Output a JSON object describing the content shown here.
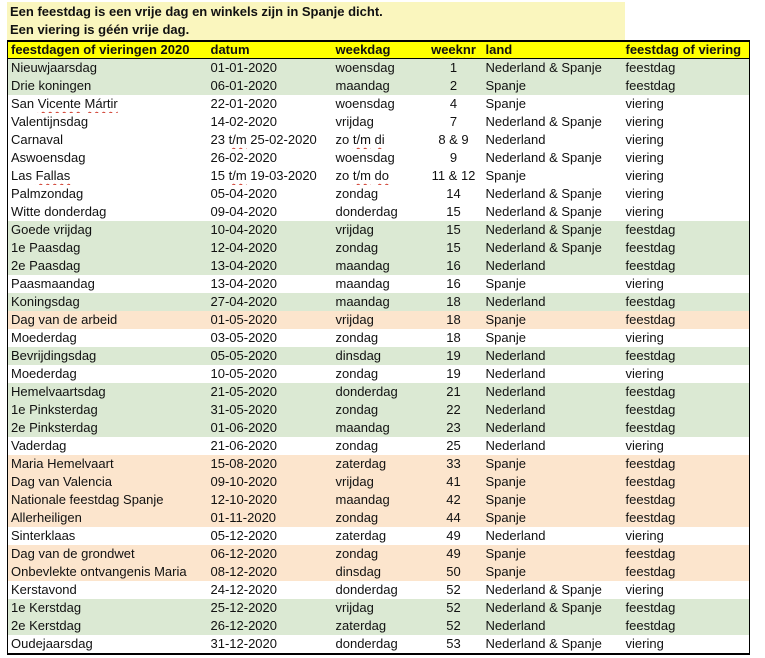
{
  "banner": {
    "line1": "Een feestdag is een vrije dag en winkels zijn in Spanje dicht.",
    "line2": "Een viering is géén vrije dag.",
    "bg": "#faf6be"
  },
  "table": {
    "colors": {
      "header_bg": "#ffff00",
      "green": "#dbe9d3",
      "peach": "#fce5cd",
      "white": "#ffffff",
      "squiggle": "#cf3a2b"
    },
    "header": {
      "columns": [
        {
          "key": "name",
          "label": "feestdagen of vieringen 2020",
          "squiggle": false
        },
        {
          "key": "datum",
          "label": "datum",
          "squiggle": false
        },
        {
          "key": "weekdag",
          "label": "weekdag",
          "squiggle": false
        },
        {
          "key": "weeknr",
          "label": "weeknr",
          "squiggle": true
        },
        {
          "key": "land",
          "label": "land",
          "squiggle": false
        },
        {
          "key": "type",
          "label": "feestdag of viering",
          "squiggle": false
        }
      ]
    },
    "rows": [
      {
        "name": "Nieuwjaarsdag",
        "datum": "01-01-2020",
        "weekdag": "woensdag",
        "weeknr": "1",
        "land": "Nederland & Spanje",
        "type": "feestdag",
        "color": "green"
      },
      {
        "name": "Drie koningen",
        "datum": "06-01-2020",
        "weekdag": "maandag",
        "weeknr": "2",
        "land": "Spanje",
        "type": "feestdag",
        "color": "green"
      },
      {
        "name": "San Vicente Mártir",
        "datum": "22-01-2020",
        "weekdag": "woensdag",
        "weeknr": "4",
        "land": "Spanje",
        "type": "viering",
        "color": "white",
        "sq": {
          "name": [
            "Vicente",
            "Mártir"
          ]
        }
      },
      {
        "name": "Valentijnsdag",
        "datum": "14-02-2020",
        "weekdag": "vrijdag",
        "weeknr": "7",
        "land": "Nederland & Spanje",
        "type": "viering",
        "color": "white"
      },
      {
        "name": "Carnaval",
        "datum": "23 t/m 25-02-2020",
        "weekdag": "zo t/m di",
        "weeknr": "8 & 9",
        "land": "Nederland",
        "type": "viering",
        "color": "white",
        "sq": {
          "datum": [
            "t/m"
          ],
          "weekdag": [
            "t/m",
            "di"
          ]
        }
      },
      {
        "name": "Aswoensdag",
        "datum": "26-02-2020",
        "weekdag": "woensdag",
        "weeknr": "9",
        "land": "Nederland & Spanje",
        "type": "viering",
        "color": "white"
      },
      {
        "name": "Las Fallas",
        "datum": "15 t/m 19-03-2020",
        "weekdag": "zo t/m do",
        "weeknr": "11 & 12",
        "land": "Spanje",
        "type": "viering",
        "color": "white",
        "sq": {
          "name": [
            "Fallas"
          ],
          "datum": [
            "t/m"
          ],
          "weekdag": [
            "t/m",
            "do"
          ]
        }
      },
      {
        "name": "Palmzondag",
        "datum": "05-04-2020",
        "weekdag": "zondag",
        "weeknr": "14",
        "land": "Nederland & Spanje",
        "type": "viering",
        "color": "white"
      },
      {
        "name": "Witte donderdag",
        "datum": "09-04-2020",
        "weekdag": "donderdag",
        "weeknr": "15",
        "land": "Nederland & Spanje",
        "type": "viering",
        "color": "white"
      },
      {
        "name": "Goede vrijdag",
        "datum": "10-04-2020",
        "weekdag": "vrijdag",
        "weeknr": "15",
        "land": "Nederland & Spanje",
        "type": "feestdag",
        "color": "green"
      },
      {
        "name": "1e Paasdag",
        "datum": "12-04-2020",
        "weekdag": "zondag",
        "weeknr": "15",
        "land": "Nederland & Spanje",
        "type": "feestdag",
        "color": "green"
      },
      {
        "name": "2e Paasdag",
        "datum": "13-04-2020",
        "weekdag": "maandag",
        "weeknr": "16",
        "land": "Nederland",
        "type": "feestdag",
        "color": "green"
      },
      {
        "name": "Paasmaandag",
        "datum": "13-04-2020",
        "weekdag": "maandag",
        "weeknr": "16",
        "land": "Spanje",
        "type": "viering",
        "color": "white"
      },
      {
        "name": "Koningsdag",
        "datum": "27-04-2020",
        "weekdag": "maandag",
        "weeknr": "18",
        "land": "Nederland",
        "type": "feestdag",
        "color": "green"
      },
      {
        "name": "Dag van de arbeid",
        "datum": "01-05-2020",
        "weekdag": "vrijdag",
        "weeknr": "18",
        "land": "Spanje",
        "type": "feestdag",
        "color": "peach"
      },
      {
        "name": "Moederdag",
        "datum": "03-05-2020",
        "weekdag": "zondag",
        "weeknr": "18",
        "land": "Spanje",
        "type": "viering",
        "color": "white"
      },
      {
        "name": "Bevrijdingsdag",
        "datum": "05-05-2020",
        "weekdag": "dinsdag",
        "weeknr": "19",
        "land": "Nederland",
        "type": "feestdag",
        "color": "green"
      },
      {
        "name": "Moederdag",
        "datum": "10-05-2020",
        "weekdag": "zondag",
        "weeknr": "19",
        "land": "Nederland",
        "type": "viering",
        "color": "white"
      },
      {
        "name": "Hemelvaartsdag",
        "datum": "21-05-2020",
        "weekdag": "donderdag",
        "weeknr": "21",
        "land": "Nederland",
        "type": "feestdag",
        "color": "green"
      },
      {
        "name": "1e Pinksterdag",
        "datum": "31-05-2020",
        "weekdag": "zondag",
        "weeknr": "22",
        "land": "Nederland",
        "type": "feestdag",
        "color": "green"
      },
      {
        "name": "2e Pinksterdag",
        "datum": "01-06-2020",
        "weekdag": "maandag",
        "weeknr": "23",
        "land": "Nederland",
        "type": "feestdag",
        "color": "green"
      },
      {
        "name": "Vaderdag",
        "datum": "21-06-2020",
        "weekdag": "zondag",
        "weeknr": "25",
        "land": "Nederland",
        "type": "viering",
        "color": "white"
      },
      {
        "name": "Maria Hemelvaart",
        "datum": "15-08-2020",
        "weekdag": "zaterdag",
        "weeknr": "33",
        "land": "Spanje",
        "type": "feestdag",
        "color": "peach"
      },
      {
        "name": "Dag van Valencia",
        "datum": "09-10-2020",
        "weekdag": "vrijdag",
        "weeknr": "41",
        "land": "Spanje",
        "type": "feestdag",
        "color": "peach"
      },
      {
        "name": "Nationale feestdag Spanje",
        "datum": "12-10-2020",
        "weekdag": "maandag",
        "weeknr": "42",
        "land": "Spanje",
        "type": "feestdag",
        "color": "peach"
      },
      {
        "name": "Allerheiligen",
        "datum": "01-11-2020",
        "weekdag": "zondag",
        "weeknr": "44",
        "land": "Spanje",
        "type": "feestdag",
        "color": "peach"
      },
      {
        "name": "Sinterklaas",
        "datum": "05-12-2020",
        "weekdag": "zaterdag",
        "weeknr": "49",
        "land": "Nederland",
        "type": "viering",
        "color": "white"
      },
      {
        "name": "Dag van de grondwet",
        "datum": "06-12-2020",
        "weekdag": "zondag",
        "weeknr": "49",
        "land": "Spanje",
        "type": "feestdag",
        "color": "peach"
      },
      {
        "name": "Onbevlekte ontvangenis Maria",
        "datum": "08-12-2020",
        "weekdag": "dinsdag",
        "weeknr": "50",
        "land": "Spanje",
        "type": "feestdag",
        "color": "peach"
      },
      {
        "name": "Kerstavond",
        "datum": "24-12-2020",
        "weekdag": "donderdag",
        "weeknr": "52",
        "land": "Nederland & Spanje",
        "type": "viering",
        "color": "white"
      },
      {
        "name": "1e Kerstdag",
        "datum": "25-12-2020",
        "weekdag": "vrijdag",
        "weeknr": "52",
        "land": "Nederland & Spanje",
        "type": "feestdag",
        "color": "green"
      },
      {
        "name": "2e Kerstdag",
        "datum": "26-12-2020",
        "weekdag": "zaterdag",
        "weeknr": "52",
        "land": "Nederland",
        "type": "feestdag",
        "color": "green"
      },
      {
        "name": "Oudejaarsdag",
        "datum": "31-12-2020",
        "weekdag": "donderdag",
        "weeknr": "53",
        "land": "Nederland & Spanje",
        "type": "viering",
        "color": "white"
      }
    ]
  }
}
